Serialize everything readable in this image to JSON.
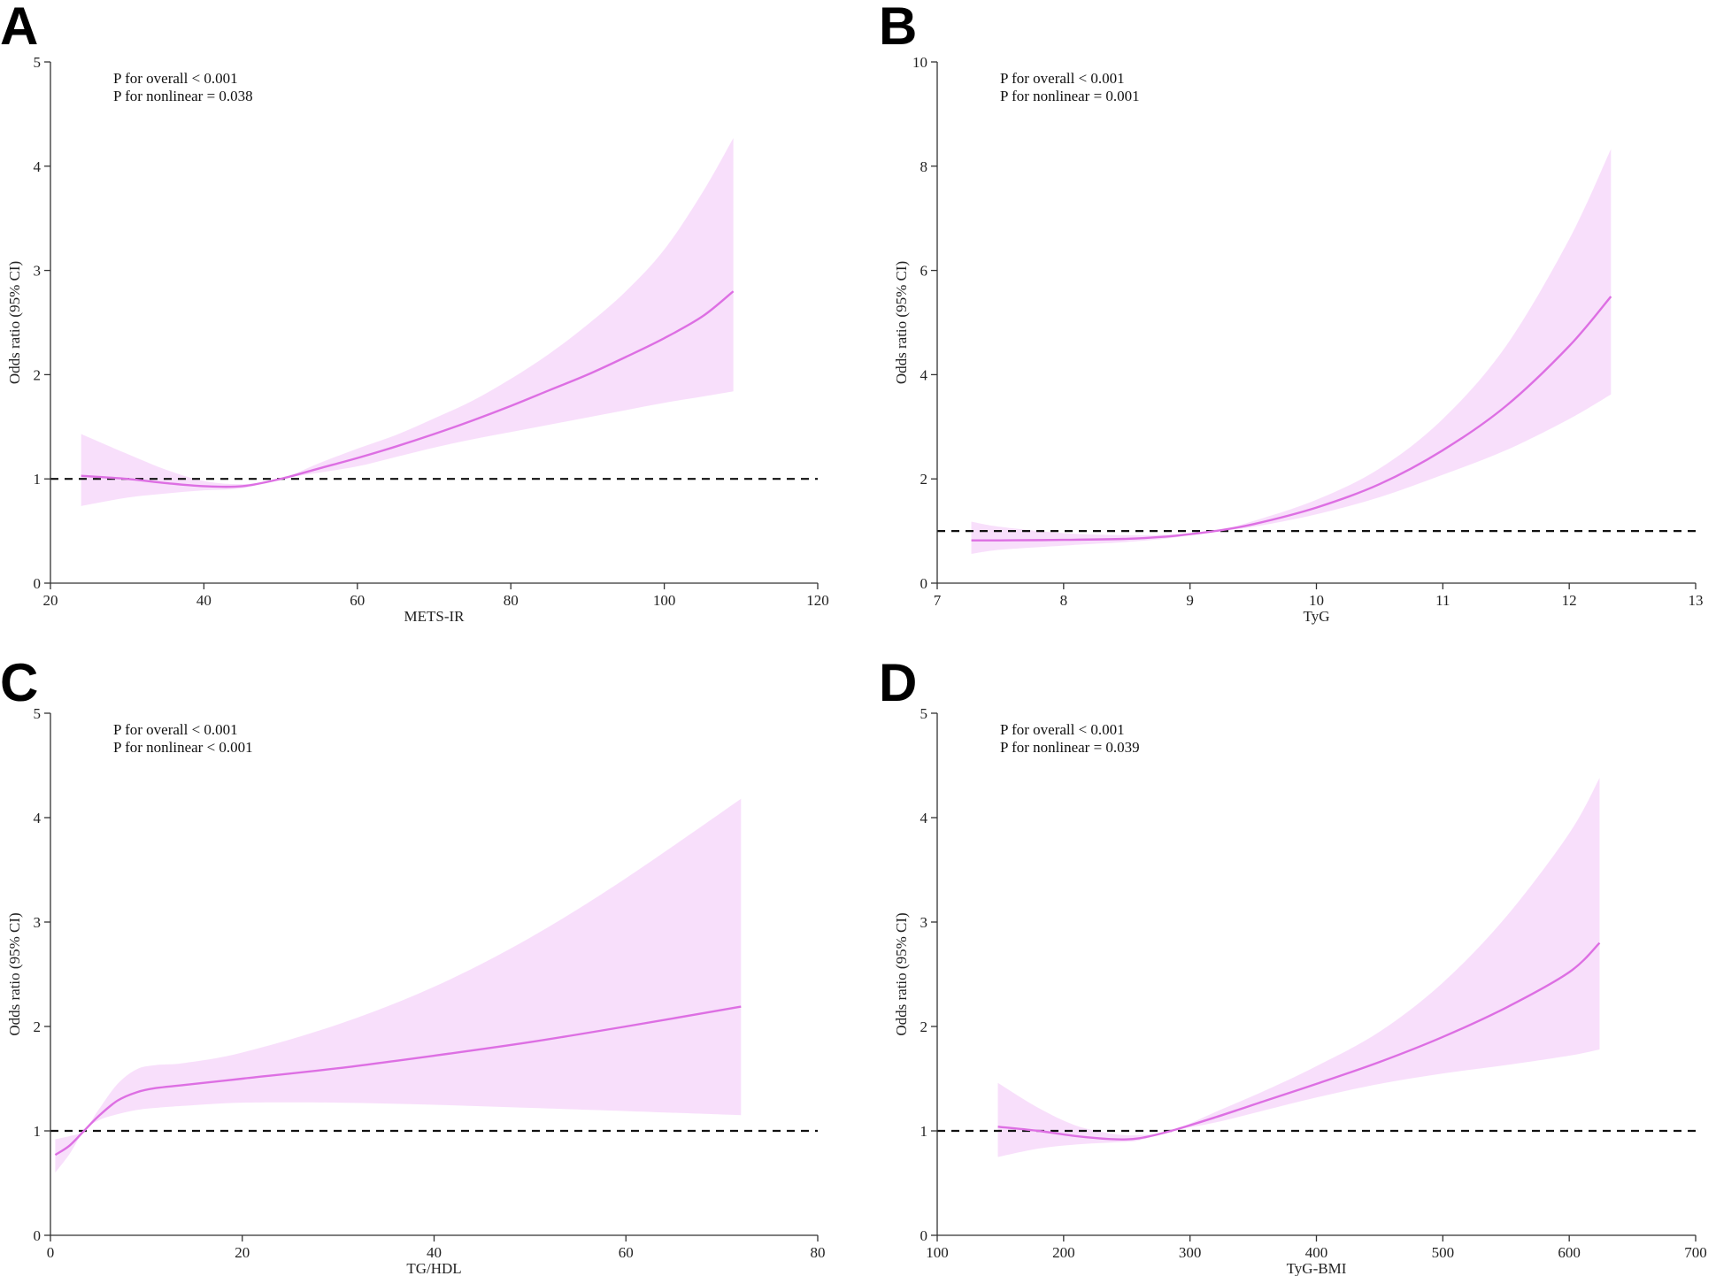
{
  "figure_title": "",
  "colors": {
    "ci_fill": "#f3ccf8",
    "curve": "#dd6fe3",
    "reference_line": "#111111"
  },
  "chart_data": [
    {
      "panel": "A",
      "type": "line",
      "title": "",
      "xlabel": "METS-IR",
      "ylabel": "Odds ratio (95% CI)",
      "xlim": [
        20,
        120
      ],
      "ylim": [
        0,
        5
      ],
      "xticks": [
        20,
        40,
        60,
        80,
        100,
        120
      ],
      "yticks": [
        0,
        1,
        2,
        3,
        4,
        5
      ],
      "annotations": [
        "P for overall < 0.001",
        "P for nonlinear = 0.038"
      ],
      "reference_line": 1,
      "series": [
        {
          "name": "Odds ratio",
          "x": [
            24,
            30,
            35,
            40,
            45,
            50,
            55,
            60,
            65,
            70,
            75,
            80,
            85,
            90,
            95,
            100,
            105,
            109
          ],
          "values": [
            1.03,
            1.0,
            0.96,
            0.93,
            0.93,
            1.0,
            1.1,
            1.2,
            1.31,
            1.43,
            1.56,
            1.7,
            1.85,
            2.0,
            2.17,
            2.35,
            2.56,
            2.8
          ]
        },
        {
          "name": "95% CI lower",
          "x": [
            24,
            30,
            35,
            40,
            45,
            50,
            55,
            60,
            65,
            70,
            75,
            80,
            85,
            90,
            95,
            100,
            105,
            109
          ],
          "values": [
            0.74,
            0.82,
            0.86,
            0.89,
            0.91,
            1.0,
            1.06,
            1.12,
            1.21,
            1.3,
            1.38,
            1.45,
            1.52,
            1.59,
            1.66,
            1.73,
            1.79,
            1.84
          ]
        },
        {
          "name": "95% CI upper",
          "x": [
            24,
            30,
            35,
            40,
            45,
            50,
            55,
            60,
            65,
            70,
            75,
            80,
            85,
            90,
            95,
            100,
            105,
            109
          ],
          "values": [
            1.43,
            1.24,
            1.09,
            0.98,
            0.95,
            1.0,
            1.15,
            1.29,
            1.42,
            1.58,
            1.75,
            1.96,
            2.2,
            2.48,
            2.8,
            3.2,
            3.75,
            4.27
          ]
        }
      ]
    },
    {
      "panel": "B",
      "type": "line",
      "title": "",
      "xlabel": "TyG",
      "ylabel": "Odds ratio (95% CI)",
      "xlim": [
        7,
        13
      ],
      "ylim": [
        0,
        10
      ],
      "xticks": [
        7,
        8,
        9,
        10,
        11,
        12,
        13
      ],
      "yticks": [
        0,
        2,
        4,
        6,
        8,
        10
      ],
      "annotations": [
        "P for overall < 0.001",
        "P for nonlinear = 0.001"
      ],
      "reference_line": 1,
      "series": [
        {
          "name": "Odds ratio",
          "x": [
            7.27,
            7.5,
            8,
            8.5,
            8.8,
            9,
            9.2,
            9.5,
            10,
            10.5,
            11,
            11.5,
            12,
            12.33
          ],
          "values": [
            0.82,
            0.82,
            0.83,
            0.85,
            0.89,
            0.94,
            1.0,
            1.13,
            1.45,
            1.9,
            2.55,
            3.4,
            4.55,
            5.5
          ]
        },
        {
          "name": "95% CI lower",
          "x": [
            7.27,
            7.5,
            8,
            8.5,
            8.8,
            9,
            9.2,
            9.5,
            10,
            10.5,
            11,
            11.5,
            12,
            12.33
          ],
          "values": [
            0.56,
            0.64,
            0.72,
            0.79,
            0.85,
            0.92,
            1.0,
            1.08,
            1.32,
            1.65,
            2.08,
            2.55,
            3.15,
            3.62
          ]
        },
        {
          "name": "95% CI upper",
          "x": [
            7.27,
            7.5,
            8,
            8.5,
            8.8,
            9,
            9.2,
            9.5,
            10,
            10.5,
            11,
            11.5,
            12,
            12.33
          ],
          "values": [
            1.18,
            1.08,
            0.96,
            0.92,
            0.93,
            0.96,
            1.0,
            1.19,
            1.6,
            2.2,
            3.15,
            4.55,
            6.6,
            8.33
          ]
        }
      ]
    },
    {
      "panel": "C",
      "type": "line",
      "title": "",
      "xlabel": "TG/HDL",
      "ylabel": "Odds ratio (95% CI)",
      "xlim": [
        0,
        80
      ],
      "ylim": [
        0,
        5
      ],
      "xticks": [
        0,
        20,
        40,
        60,
        80
      ],
      "yticks": [
        0,
        1,
        2,
        3,
        4,
        5
      ],
      "annotations": [
        "P for overall < 0.001",
        "P for nonlinear < 0.001"
      ],
      "reference_line": 1,
      "series": [
        {
          "name": "Odds ratio",
          "x": [
            0.5,
            2,
            3.5,
            5,
            7,
            9,
            11,
            14,
            20,
            30,
            40,
            50,
            60,
            72
          ],
          "values": [
            0.77,
            0.86,
            1.0,
            1.14,
            1.29,
            1.37,
            1.41,
            1.44,
            1.5,
            1.6,
            1.72,
            1.85,
            2.0,
            2.19
          ]
        },
        {
          "name": "95% CI lower",
          "x": [
            0.5,
            2,
            3.5,
            5,
            7,
            9,
            11,
            14,
            20,
            30,
            40,
            50,
            60,
            72
          ],
          "values": [
            0.6,
            0.78,
            1.0,
            1.1,
            1.16,
            1.2,
            1.22,
            1.24,
            1.27,
            1.27,
            1.25,
            1.22,
            1.19,
            1.15
          ]
        },
        {
          "name": "95% CI upper",
          "x": [
            0.5,
            2,
            3.5,
            5,
            7,
            9,
            11,
            14,
            20,
            30,
            40,
            50,
            60,
            72
          ],
          "values": [
            0.92,
            0.95,
            1.0,
            1.2,
            1.45,
            1.59,
            1.63,
            1.65,
            1.75,
            2.02,
            2.38,
            2.85,
            3.42,
            4.18
          ]
        }
      ]
    },
    {
      "panel": "D",
      "type": "line",
      "title": "",
      "xlabel": "TyG-BMI",
      "ylabel": "Odds ratio (95% CI)",
      "xlim": [
        100,
        700
      ],
      "ylim": [
        0,
        5
      ],
      "xticks": [
        100,
        200,
        300,
        400,
        500,
        600,
        700
      ],
      "yticks": [
        0,
        1,
        2,
        3,
        4,
        5
      ],
      "annotations": [
        "P for overall < 0.001",
        "P for nonlinear = 0.039"
      ],
      "reference_line": 1,
      "series": [
        {
          "name": "Odds ratio",
          "x": [
            148,
            180,
            210,
            240,
            260,
            285,
            320,
            360,
            400,
            450,
            500,
            550,
            600,
            624
          ],
          "values": [
            1.04,
            1.0,
            0.95,
            0.92,
            0.93,
            1.0,
            1.13,
            1.29,
            1.45,
            1.66,
            1.9,
            2.18,
            2.52,
            2.8
          ]
        },
        {
          "name": "95% CI lower",
          "x": [
            148,
            180,
            210,
            240,
            260,
            285,
            320,
            360,
            400,
            450,
            500,
            550,
            600,
            624
          ],
          "values": [
            0.75,
            0.83,
            0.87,
            0.89,
            0.91,
            1.0,
            1.08,
            1.2,
            1.32,
            1.45,
            1.55,
            1.63,
            1.72,
            1.78
          ]
        },
        {
          "name": "95% CI upper",
          "x": [
            148,
            180,
            210,
            240,
            260,
            285,
            320,
            360,
            400,
            450,
            500,
            550,
            600,
            624
          ],
          "values": [
            1.46,
            1.22,
            1.05,
            0.97,
            0.96,
            1.0,
            1.18,
            1.39,
            1.62,
            1.95,
            2.42,
            3.05,
            3.85,
            4.38
          ]
        }
      ]
    }
  ]
}
